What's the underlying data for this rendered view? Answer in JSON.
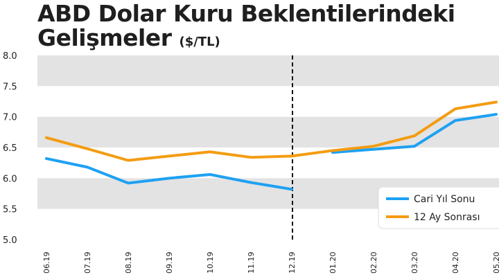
{
  "chart_data": {
    "type": "line",
    "title_line1": "ABD Dolar Kuru Beklentilerindeki",
    "title_line2": "Gelişmeler",
    "title_unit": "($/TL)",
    "categories": [
      "06.19",
      "07.19",
      "08.19",
      "09.19",
      "10.19",
      "11.19",
      "12.19",
      "01.20",
      "02.20",
      "03.20",
      "04.20",
      "05.20"
    ],
    "yticks": [
      "5.0",
      "5.5",
      "6.0",
      "6.5",
      "7.0",
      "7.5",
      "8.0"
    ],
    "ylim": [
      5.0,
      8.0
    ],
    "grid_bands": true,
    "divider_after_index": 6,
    "legend_position": "bottom-right",
    "series": [
      {
        "name": "Cari Yıl Sonu",
        "color": "#1ea1f2",
        "segments": [
          [
            0,
            6
          ],
          [
            7,
            11
          ]
        ],
        "values": [
          6.32,
          6.18,
          5.92,
          6.0,
          6.06,
          5.93,
          5.82,
          6.42,
          6.47,
          6.52,
          6.94,
          7.04
        ]
      },
      {
        "name": "12 Ay Sonrası",
        "color": "#f39c12",
        "segments": [
          [
            0,
            11
          ]
        ],
        "values": [
          6.66,
          6.48,
          6.29,
          6.36,
          6.43,
          6.34,
          6.36,
          6.45,
          6.52,
          6.69,
          7.13,
          7.24
        ]
      }
    ]
  }
}
